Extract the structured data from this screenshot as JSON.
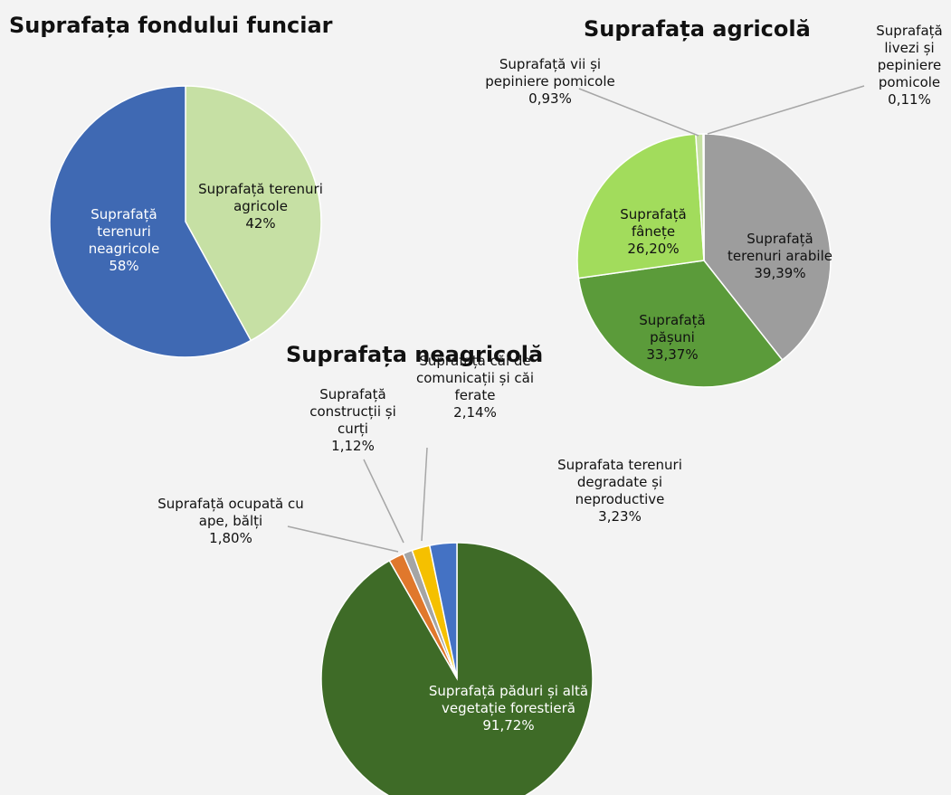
{
  "chart_data": [
    {
      "type": "pie",
      "title": "Suprafața fondului funciar",
      "categories": [
        "Suprafață terenuri agricole",
        "Suprafață terenuri neagricole"
      ],
      "values": [
        42,
        58
      ],
      "value_labels": [
        "42%",
        "58%"
      ],
      "colors": [
        "#c6e0a4",
        "#3f69b3"
      ]
    },
    {
      "type": "pie",
      "title": "Suprafața agricolă",
      "categories": [
        "Suprafață terenuri arabile",
        "Suprafață pășuni",
        "Suprafață fânețe",
        "Suprafață vii și pepiniere pomicole",
        "Suprafață livezi și pepiniere pomicole"
      ],
      "values": [
        39.39,
        33.37,
        26.2,
        0.93,
        0.11
      ],
      "value_labels": [
        "39,39%",
        "33,37%",
        "26,20%",
        "0,93%",
        "0,11%"
      ],
      "colors": [
        "#9d9d9d",
        "#5b9b3a",
        "#a2dc5c",
        "#c6e0a4",
        "#dfe8cf"
      ]
    },
    {
      "type": "pie",
      "title": "Suprafața neagricolă",
      "categories": [
        "Suprafață păduri și altă vegetație forestieră",
        "Suprafață ocupată cu ape, bălți",
        "Suprafață construcții și curți",
        "Suprafața căi de comunicații și căi ferate",
        "Suprafata terenuri degradate și neproductive"
      ],
      "values": [
        91.72,
        1.8,
        1.12,
        2.14,
        3.23
      ],
      "value_labels": [
        "91,72%",
        "1,80%",
        "1,12%",
        "2,14%",
        "3,23%"
      ],
      "colors": [
        "#3e6b27",
        "#e0782c",
        "#a5a5a5",
        "#f5c000",
        "#4472c4"
      ]
    }
  ]
}
